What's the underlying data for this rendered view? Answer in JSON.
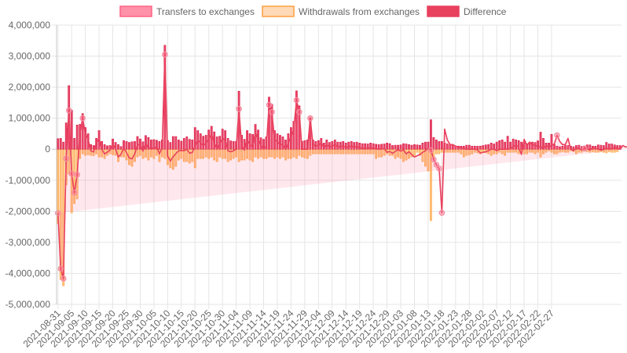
{
  "chart_data": {
    "type": "bar",
    "legend_position": "top",
    "grid": true,
    "ylim": [
      -5000000,
      4000000
    ],
    "y_ticks": [
      4000000,
      3000000,
      2000000,
      1000000,
      0,
      -1000000,
      -2000000,
      -3000000,
      -4000000,
      -5000000
    ],
    "y_tick_labels": [
      "4,000,000",
      "3,000,000",
      "2,000,000",
      "1,000,000",
      "0",
      "-1,000,000",
      "-2,000,000",
      "-3,000,000",
      "-4,000,000",
      "-5,000,000"
    ],
    "x_tick_labels": [
      "2021-08-31",
      "2021-09-05",
      "2021-09-10",
      "2021-09-15",
      "2021-09-20",
      "2021-09-25",
      "2021-09-30",
      "2021-10-05",
      "2021-10-10",
      "2021-10-15",
      "2021-10-20",
      "2021-10-25",
      "2021-10-30",
      "2021-11-04",
      "2021-11-09",
      "2021-11-14",
      "2021-11-19",
      "2021-11-24",
      "2021-11-29",
      "2021-12-04",
      "2021-12-09",
      "2021-12-14",
      "2021-12-19",
      "2021-12-24",
      "2021-12-29",
      "2022-01-03",
      "2022-01-08",
      "2022-01-13",
      "2022-01-18",
      "2022-01-23",
      "2022-01-28",
      "2022-02-02",
      "2022-02-07",
      "2022-02-12",
      "2022-02-17",
      "2022-02-22",
      "2022-02-27"
    ],
    "x_start": "2021-08-31",
    "x_end": "2022-02-28",
    "series": [
      {
        "name": "Transfers to exchanges",
        "type": "bar",
        "color": "#ff6384",
        "values": [
          340000,
          350000,
          230000,
          850000,
          2050000,
          1260000,
          350000,
          780000,
          800000,
          1150000,
          700000,
          500000,
          150000,
          120000,
          350000,
          600000,
          250000,
          150000,
          110000,
          120000,
          330000,
          220000,
          150000,
          90000,
          280000,
          250000,
          220000,
          240000,
          250000,
          410000,
          330000,
          240000,
          440000,
          380000,
          300000,
          310000,
          290000,
          250000,
          300000,
          3350000,
          280000,
          220000,
          410000,
          410000,
          300000,
          260000,
          350000,
          400000,
          320000,
          300000,
          700000,
          600000,
          500000,
          420000,
          450000,
          620000,
          740000,
          560000,
          400000,
          420000,
          650000,
          600000,
          350000,
          270000,
          250000,
          250000,
          1870000,
          450000,
          320000,
          600000,
          500000,
          480000,
          800000,
          620000,
          370000,
          320000,
          400000,
          1680000,
          1450000,
          600000,
          500000,
          450000,
          400000,
          300000,
          500000,
          700000,
          900000,
          1880000,
          1400000,
          250000,
          280000,
          300000,
          1020000,
          300000,
          250000,
          280000,
          350000,
          200000,
          300000,
          220000,
          250000,
          300000,
          230000,
          230000,
          250000,
          200000,
          230000,
          250000,
          220000,
          230000,
          200000,
          180000,
          180000,
          170000,
          200000,
          180000,
          160000,
          150000,
          160000,
          170000,
          200000,
          180000,
          120000,
          130000,
          130000,
          140000,
          180000,
          170000,
          150000,
          130000,
          150000,
          140000,
          130000,
          200000,
          230000,
          230000,
          950000,
          380000,
          300000,
          250000,
          250000,
          200000,
          170000,
          150000,
          120000,
          100000,
          100000,
          100000,
          100000,
          130000,
          130000,
          100000,
          100000,
          100000,
          100000,
          120000,
          140000,
          150000,
          200000,
          170000,
          230000,
          280000,
          300000,
          230000,
          420000,
          230000,
          330000,
          300000,
          280000,
          230000,
          230000,
          180000,
          220000,
          230000,
          220000,
          270000,
          550000,
          350000,
          200000,
          200000,
          480000,
          150000,
          100000,
          80000,
          100000,
          120000,
          120000,
          100000,
          80000,
          120000,
          130000,
          90000,
          110000,
          140000,
          140000,
          100000,
          100000,
          140000,
          130000,
          120000,
          220000,
          170000,
          170000,
          140000,
          120000,
          120000
        ]
      },
      {
        "name": "Withdrawals from exchanges",
        "type": "bar",
        "color": "#ff9f40",
        "values": [
          -2400000,
          -4200000,
          -4400000,
          -1150000,
          -800000,
          -2050000,
          -1750000,
          -1600000,
          -300000,
          -150000,
          -200000,
          -180000,
          -200000,
          -210000,
          -150000,
          -250000,
          -250000,
          -300000,
          -200000,
          -150000,
          -180000,
          -200000,
          -400000,
          -250000,
          -250000,
          -350000,
          -500000,
          -550000,
          -400000,
          -250000,
          -200000,
          -300000,
          -260000,
          -350000,
          -250000,
          -300000,
          -200000,
          -400000,
          -250000,
          -300000,
          -500000,
          -600000,
          -650000,
          -550000,
          -350000,
          -300000,
          -400000,
          -400000,
          -450000,
          -400000,
          -600000,
          -300000,
          -300000,
          -300000,
          -250000,
          -300000,
          -250000,
          -350000,
          -400000,
          -250000,
          -300000,
          -300000,
          -400000,
          -350000,
          -300000,
          -250000,
          -400000,
          -350000,
          -350000,
          -300000,
          -350000,
          -400000,
          -250000,
          -300000,
          -250000,
          -300000,
          -300000,
          -250000,
          -250000,
          -300000,
          -250000,
          -300000,
          -250000,
          -350000,
          -300000,
          -300000,
          -250000,
          -300000,
          -200000,
          -250000,
          -280000,
          -300000,
          -200000,
          -150000,
          -150000,
          -150000,
          -150000,
          -150000,
          -150000,
          -150000,
          -150000,
          -150000,
          -150000,
          -150000,
          -150000,
          -150000,
          -150000,
          -150000,
          -150000,
          -150000,
          -150000,
          -150000,
          -150000,
          -150000,
          -150000,
          -150000,
          -300000,
          -250000,
          -250000,
          -200000,
          -150000,
          -200000,
          -200000,
          -300000,
          -250000,
          -300000,
          -400000,
          -350000,
          -300000,
          -250000,
          -200000,
          -100000,
          -200000,
          -400000,
          -550000,
          -700000,
          -2300000,
          -300000,
          -150000,
          -150000,
          -100000,
          -100000,
          -100000,
          -100000,
          -100000,
          -100000,
          -100000,
          -150000,
          -250000,
          -200000,
          -180000,
          -150000,
          -100000,
          -120000,
          -150000,
          -100000,
          -120000,
          -150000,
          -200000,
          -150000,
          -150000,
          -100000,
          -150000,
          -200000,
          -100000,
          -100000,
          -100000,
          -100000,
          -150000,
          -100000,
          -150000,
          -150000,
          -100000,
          -100000,
          -150000,
          -100000,
          -250000,
          -150000,
          -100000,
          -50000,
          -100000,
          -150000,
          -150000,
          -100000,
          -80000,
          -100000,
          -100000,
          -50000,
          -80000,
          -150000,
          -100000,
          -100000,
          -50000,
          -80000,
          -100000,
          -80000,
          -100000,
          -100000,
          -80000,
          -100000,
          -120000,
          -80000,
          -100000,
          -100000,
          -80000
        ]
      },
      {
        "name": "Difference",
        "type": "line",
        "color": "#e8415e",
        "values": [
          -2060000,
          -3850000,
          -4170000,
          -300000,
          1250000,
          -790000,
          -1400000,
          -820000,
          500000,
          1000000,
          500000,
          320000,
          -50000,
          -90000,
          200000,
          350000,
          0,
          -150000,
          -90000,
          -30000,
          150000,
          20000,
          -250000,
          -160000,
          30000,
          -100000,
          -280000,
          -310000,
          -150000,
          160000,
          130000,
          -60000,
          180000,
          30000,
          50000,
          10000,
          90000,
          -150000,
          50000,
          3050000,
          -220000,
          -380000,
          -240000,
          -140000,
          -50000,
          -40000,
          -50000,
          0,
          -130000,
          -100000,
          100000,
          300000,
          200000,
          120000,
          200000,
          320000,
          490000,
          210000,
          0,
          170000,
          350000,
          300000,
          -50000,
          -80000,
          -50000,
          0,
          1300000,
          100000,
          -30000,
          300000,
          150000,
          80000,
          550000,
          320000,
          120000,
          20000,
          100000,
          1430000,
          1200000,
          300000,
          250000,
          150000,
          150000,
          0,
          200000,
          400000,
          650000,
          1580000,
          1200000,
          0,
          0,
          0,
          1000000,
          150000,
          100000,
          130000,
          200000,
          50000,
          150000,
          70000,
          100000,
          150000,
          80000,
          80000,
          100000,
          50000,
          80000,
          100000,
          70000,
          80000,
          50000,
          30000,
          30000,
          20000,
          50000,
          30000,
          10000,
          0,
          10000,
          20000,
          -100000,
          -70000,
          -130000,
          -70000,
          -20000,
          -60000,
          -20000,
          -150000,
          -80000,
          -170000,
          -250000,
          -210000,
          -170000,
          -100000,
          -50000,
          40000,
          -30000,
          -330000,
          -500000,
          -620000,
          -2050000,
          650000,
          300000,
          150000,
          150000,
          100000,
          70000,
          50000,
          20000,
          0,
          0,
          0,
          0,
          -20000,
          -120000,
          -100000,
          -80000,
          -50000,
          0,
          0,
          -50000,
          0,
          0,
          0,
          0,
          20000,
          80000,
          130000,
          70000,
          -170000,
          320000,
          130000,
          230000,
          150000,
          130000,
          80000,
          80000,
          30000,
          120000,
          80000,
          120000,
          170000,
          450000,
          250000,
          150000,
          150000,
          350000,
          0,
          -50000,
          30000,
          20000,
          -30000,
          20000,
          20000,
          -30000,
          40000,
          30000,
          0,
          -30000,
          -10000,
          40000,
          0,
          20000,
          60000,
          30000,
          0,
          120000,
          70000,
          90000,
          60000,
          20000,
          40000
        ]
      }
    ],
    "marked_points": [
      0,
      1,
      2,
      3,
      4,
      5,
      6,
      7,
      9,
      39,
      66,
      77,
      78,
      87,
      88,
      92,
      136,
      137,
      138,
      139,
      140,
      182,
      192
    ]
  }
}
